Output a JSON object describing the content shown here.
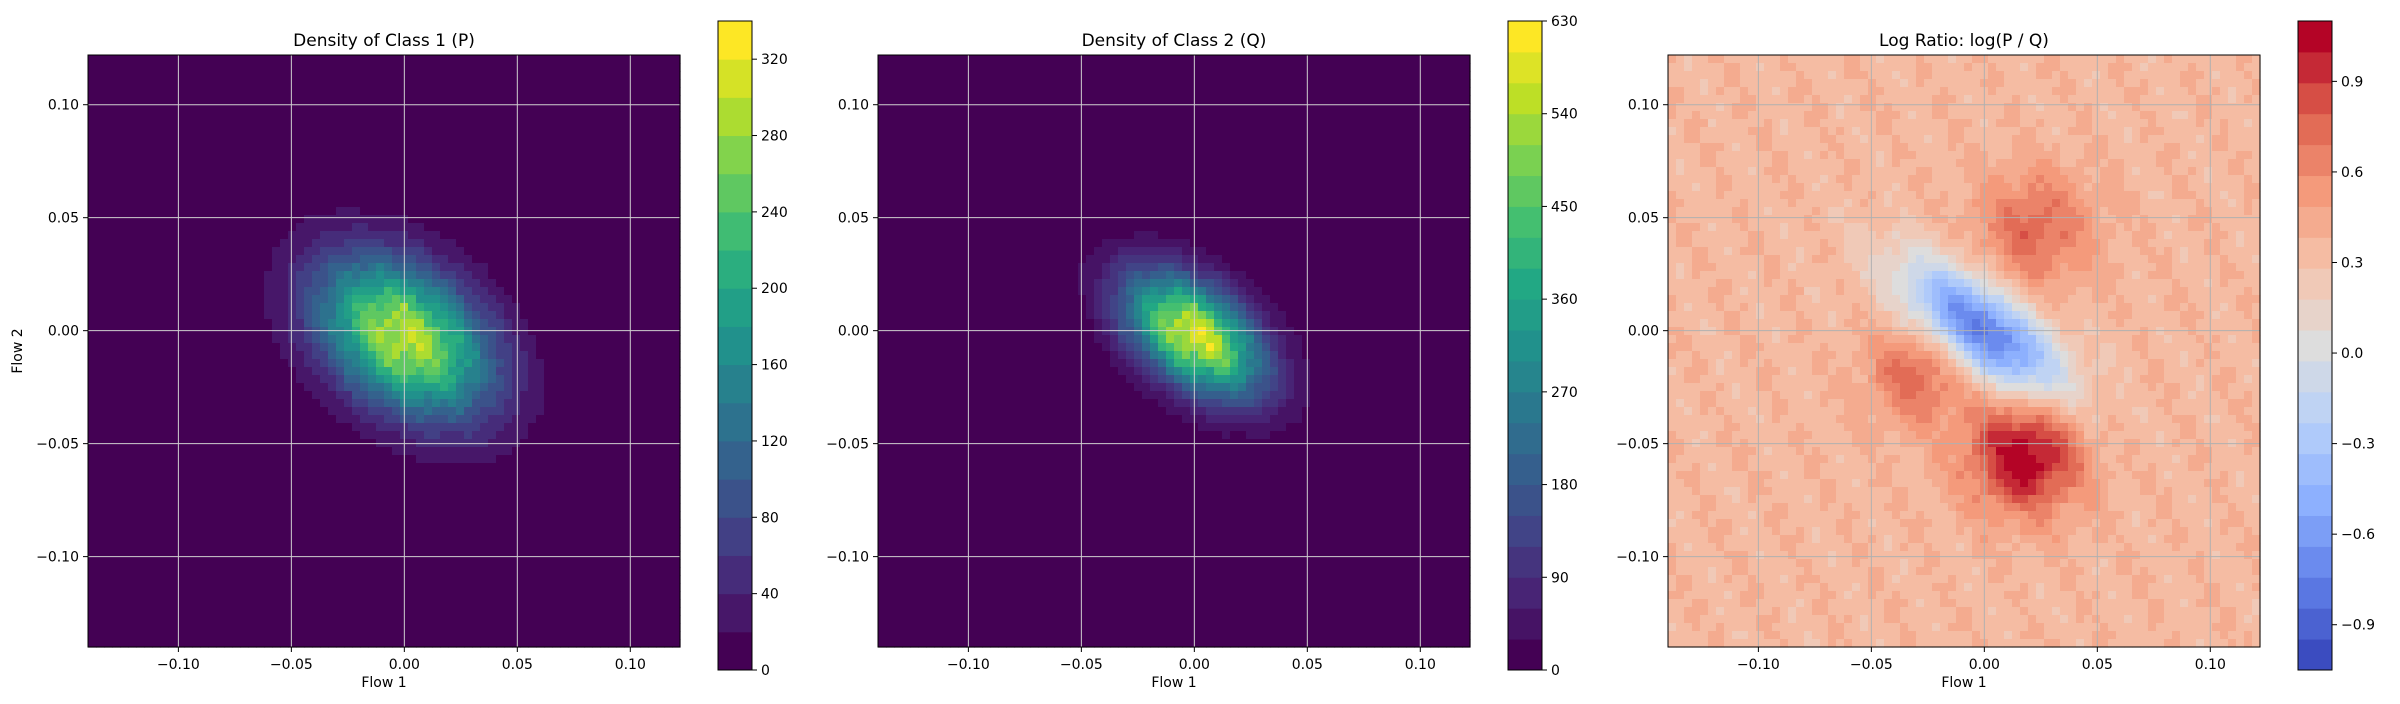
{
  "chart_data": [
    {
      "type": "heatmap",
      "title": "Density of Class 1 (P)",
      "xlabel": "Flow 1",
      "ylabel": "Flow 2",
      "xlim": [
        -0.14,
        0.122
      ],
      "ylim": [
        -0.14,
        0.122
      ],
      "xticks": [
        -0.1,
        -0.05,
        0.0,
        0.05,
        0.1
      ],
      "xtick_labels": [
        "−0.10",
        "−0.05",
        "0.00",
        "0.05",
        "0.10"
      ],
      "yticks": [
        -0.1,
        -0.05,
        0.0,
        0.05,
        0.1
      ],
      "ytick_labels": [
        "−0.10",
        "−0.05",
        "0.00",
        "0.05",
        "0.10"
      ],
      "grid": true,
      "colormap": "viridis",
      "background_color": "#440154",
      "density": {
        "center": [
          0.0,
          -0.003
        ],
        "sigma_major": 0.03,
        "sigma_minor": 0.02,
        "angle_deg": -38,
        "peak": 300,
        "texture": 0.12
      },
      "colorbar": {
        "min": 0,
        "max": 340,
        "ticks": [
          0,
          40,
          80,
          120,
          160,
          200,
          240,
          280,
          320
        ],
        "tick_labels": [
          "0",
          "40",
          "80",
          "120",
          "160",
          "200",
          "240",
          "280",
          "320"
        ],
        "levels": 17
      }
    },
    {
      "type": "heatmap",
      "title": "Density of Class 2 (Q)",
      "xlabel": "Flow 1",
      "ylabel": "",
      "xlim": [
        -0.14,
        0.122
      ],
      "ylim": [
        -0.14,
        0.122
      ],
      "xticks": [
        -0.1,
        -0.05,
        0.0,
        0.05,
        0.1
      ],
      "xtick_labels": [
        "−0.10",
        "−0.05",
        "0.00",
        "0.05",
        "0.10"
      ],
      "yticks": [
        -0.1,
        -0.05,
        0.0,
        0.05,
        0.1
      ],
      "ytick_labels": [
        "−0.10",
        "−0.05",
        "0.00",
        "0.05",
        "0.10"
      ],
      "grid": true,
      "colormap": "viridis",
      "background_color": "#440154",
      "density": {
        "center": [
          0.0,
          -0.002
        ],
        "sigma_major": 0.024,
        "sigma_minor": 0.014,
        "angle_deg": -38,
        "peak": 590,
        "texture": 0.14
      },
      "colorbar": {
        "min": 0,
        "max": 630,
        "ticks": [
          0,
          90,
          180,
          270,
          360,
          450,
          540,
          630
        ],
        "tick_labels": [
          "0",
          "90",
          "180",
          "270",
          "360",
          "450",
          "540",
          "630"
        ],
        "levels": 21
      }
    },
    {
      "type": "heatmap",
      "title": "Log Ratio: log(P / Q)",
      "xlabel": "Flow 1",
      "ylabel": "",
      "xlim": [
        -0.14,
        0.122
      ],
      "ylim": [
        -0.14,
        0.122
      ],
      "xticks": [
        -0.1,
        -0.05,
        0.0,
        0.05,
        0.1
      ],
      "xtick_labels": [
        "−0.10",
        "−0.05",
        "0.00",
        "0.05",
        "0.10"
      ],
      "yticks": [
        -0.1,
        -0.05,
        0.0,
        0.05,
        0.1
      ],
      "ytick_labels": [
        "−0.10",
        "−0.05",
        "0.00",
        "0.05",
        "0.10"
      ],
      "grid": true,
      "colormap": "coolwarm",
      "ratio": {
        "base": 0.35,
        "blue_center": [
          0.0,
          0.0
        ],
        "blue_depth": 1.15,
        "blue_sigma_major": 0.03,
        "blue_sigma_minor": 0.012,
        "angle_deg": -38,
        "red_spots": [
          {
            "center": [
              0.018,
              -0.055
            ],
            "amp": 0.75,
            "sigma": 0.018
          },
          {
            "center": [
              0.022,
              0.045
            ],
            "amp": 0.4,
            "sigma": 0.018
          },
          {
            "center": [
              -0.03,
              -0.02
            ],
            "amp": 0.4,
            "sigma": 0.015
          }
        ],
        "texture": 0.1
      },
      "colorbar": {
        "min": -1.05,
        "max": 1.1,
        "ticks": [
          -0.9,
          -0.6,
          -0.3,
          0.0,
          0.3,
          0.6,
          0.9
        ],
        "tick_labels": [
          "−0.9",
          "−0.6",
          "−0.3",
          "0.0",
          "0.3",
          "0.6",
          "0.9"
        ],
        "levels": 21
      }
    }
  ]
}
